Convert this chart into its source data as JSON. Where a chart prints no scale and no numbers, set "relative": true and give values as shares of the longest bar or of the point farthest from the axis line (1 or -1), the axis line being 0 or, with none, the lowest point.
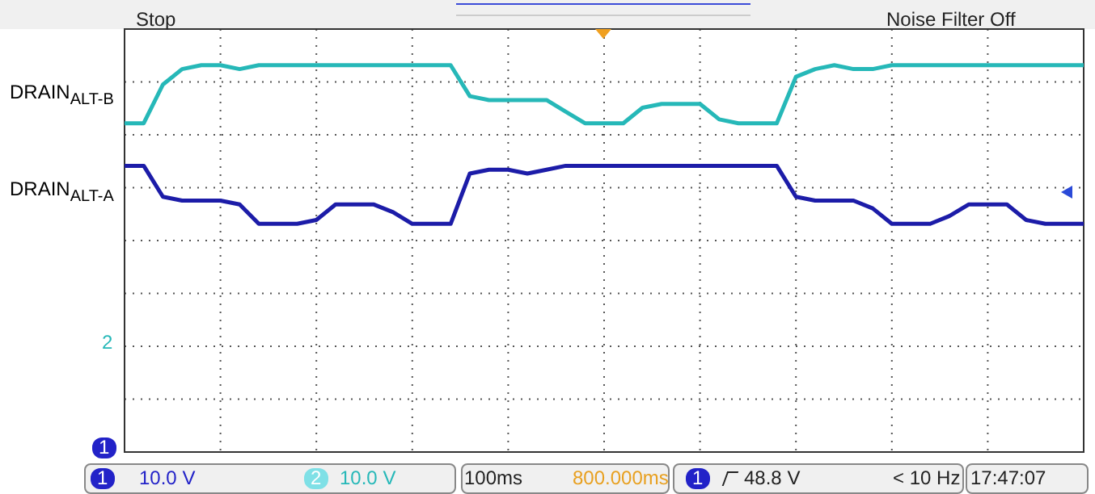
{
  "chart_data": {
    "type": "line",
    "relative": true,
    "grid": true,
    "legend": false,
    "marker": "none",
    "line_style": "solid",
    "categories": [
      null,
      null,
      null,
      null,
      null,
      null,
      null,
      null,
      null,
      null,
      null,
      null,
      null,
      null,
      null,
      null,
      null,
      null,
      null,
      null,
      null,
      null,
      null,
      null,
      null,
      null,
      null,
      null,
      null,
      null,
      null,
      null,
      null,
      null,
      null,
      null,
      null,
      null,
      null,
      null,
      null,
      null,
      null,
      null,
      null,
      null,
      null,
      null,
      null,
      null,
      null
    ],
    "series": [
      {
        "name": "DRAIN$_{ALT-B}$",
        "color": "#26b8b8",
        "values": [
          0.85,
          0.85,
          0.95,
          0.99,
          1.0,
          1.0,
          0.99,
          1.0,
          1.0,
          1.0,
          1.0,
          1.0,
          1.0,
          1.0,
          1.0,
          1.0,
          1.0,
          1.0,
          0.92,
          0.91,
          0.91,
          0.91,
          0.91,
          0.88,
          0.85,
          0.85,
          0.85,
          0.89,
          0.9,
          0.9,
          0.9,
          0.86,
          0.85,
          0.85,
          0.85,
          0.97,
          0.99,
          1.0,
          0.99,
          0.99,
          1.0,
          1.0,
          1.0,
          1.0,
          1.0,
          1.0,
          1.0,
          1.0,
          1.0,
          1.0,
          1.0
        ]
      },
      {
        "name": "DRAIN$_{ALT-A}$",
        "color": "#1c1ca8",
        "values": [
          0.74,
          0.74,
          0.66,
          0.65,
          0.65,
          0.65,
          0.64,
          0.59,
          0.59,
          0.59,
          0.6,
          0.64,
          0.64,
          0.64,
          0.62,
          0.59,
          0.59,
          0.59,
          0.72,
          0.73,
          0.73,
          0.72,
          0.73,
          0.74,
          0.74,
          0.74,
          0.74,
          0.74,
          0.74,
          0.74,
          0.74,
          0.74,
          0.74,
          0.74,
          0.74,
          0.66,
          0.65,
          0.65,
          0.65,
          0.63,
          0.59,
          0.59,
          0.59,
          0.61,
          0.64,
          0.64,
          0.64,
          0.6,
          0.59,
          0.59,
          0.59
        ]
      }
    ],
    "annotations": [
      "Stop",
      "Noise Filter Off",
      "1",
      "10.0 V",
      "2",
      "10.0 V",
      "100ms",
      "800.000ms",
      "1",
      "48.8 V",
      "< 10 Hz",
      "17:47:07",
      "2",
      "1"
    ]
  }
}
